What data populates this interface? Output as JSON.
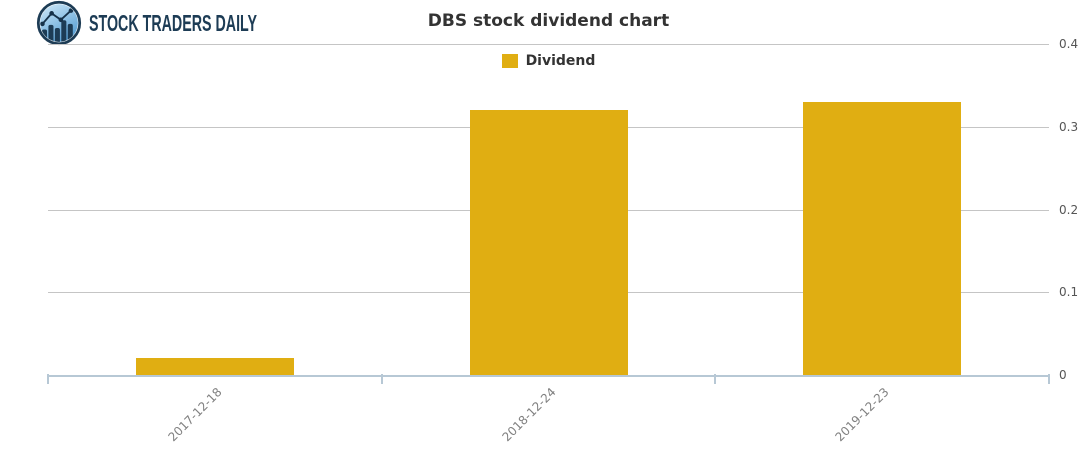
{
  "header": {
    "brand": "STOCK TRADERS DAILY",
    "logo_icon": "bar-chart-circle-icon",
    "brand_color": "#1d3c55"
  },
  "chart": {
    "title": "DBS stock dividend chart",
    "legend": {
      "label": "Dividend",
      "swatch_color": "#e0ae12"
    }
  },
  "chart_data": {
    "type": "bar",
    "title": "DBS stock dividend chart",
    "categories": [
      "2017-12-18",
      "2018-12-24",
      "2019-12-23"
    ],
    "series": [
      {
        "name": "Dividend",
        "color": "#e0ae12",
        "values": [
          0.02,
          0.32,
          0.33
        ]
      }
    ],
    "xlabel": "",
    "ylabel": "",
    "ylim": [
      0,
      0.4
    ],
    "yticks": [
      0,
      0.1,
      0.2,
      0.3,
      0.4
    ],
    "ytick_labels": [
      "0",
      "0.1",
      "0.2",
      "0.3",
      "0.4"
    ],
    "y_axis_side": "right",
    "grid": true,
    "legend_position": "top-center",
    "x_tick_rotation_deg": 45,
    "colors": {
      "grid": "#c5c5c5",
      "axis": "#b7c8d5",
      "title": "#333333",
      "y_tick_label": "#555555",
      "x_tick_label": "#808080",
      "background": "#ffffff"
    }
  }
}
